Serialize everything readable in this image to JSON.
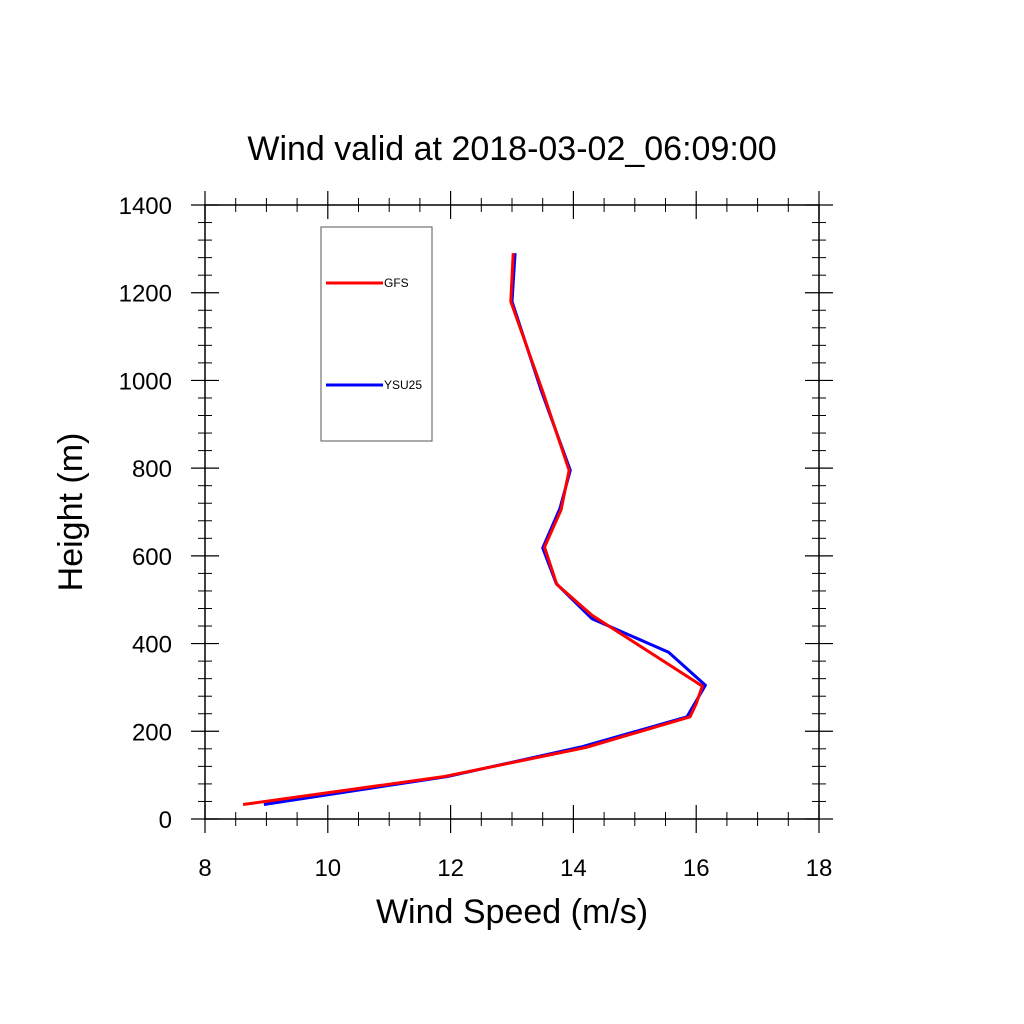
{
  "chart_data": {
    "type": "line",
    "title": "Wind valid at 2018-03-02_06:09:00",
    "xlabel": "Wind Speed (m/s)",
    "ylabel": "Height (m)",
    "xlim": [
      8,
      18
    ],
    "ylim": [
      0,
      1400
    ],
    "xticks": [
      8,
      10,
      12,
      14,
      16,
      18
    ],
    "yticks": [
      0,
      200,
      400,
      600,
      800,
      1000,
      1200,
      1400
    ],
    "xtick_labels": [
      "8",
      "10",
      "12",
      "14",
      "16",
      "18"
    ],
    "ytick_labels": [
      "0",
      "200",
      "400",
      "600",
      "800",
      "1000",
      "1200",
      "1400"
    ],
    "grid": false,
    "legend_position": "top-left",
    "series": [
      {
        "name": "GFS",
        "color": "#ff0000",
        "points": [
          {
            "x": 8.62,
            "y": 33
          },
          {
            "x": 11.9,
            "y": 97
          },
          {
            "x": 14.2,
            "y": 163
          },
          {
            "x": 15.9,
            "y": 233
          },
          {
            "x": 16.0,
            "y": 263
          },
          {
            "x": 16.1,
            "y": 303
          },
          {
            "x": 15.3,
            "y": 375
          },
          {
            "x": 14.3,
            "y": 465
          },
          {
            "x": 13.73,
            "y": 535
          },
          {
            "x": 13.53,
            "y": 620
          },
          {
            "x": 13.8,
            "y": 705
          },
          {
            "x": 13.93,
            "y": 795
          },
          {
            "x": 13.5,
            "y": 975
          },
          {
            "x": 12.98,
            "y": 1180
          },
          {
            "x": 13.02,
            "y": 1290
          }
        ]
      },
      {
        "name": "YSU25",
        "color": "#0000ff",
        "points": [
          {
            "x": 8.96,
            "y": 33
          },
          {
            "x": 11.95,
            "y": 97
          },
          {
            "x": 14.15,
            "y": 165
          },
          {
            "x": 15.85,
            "y": 233
          },
          {
            "x": 16.15,
            "y": 305
          },
          {
            "x": 15.55,
            "y": 380
          },
          {
            "x": 14.3,
            "y": 457
          },
          {
            "x": 13.72,
            "y": 537
          },
          {
            "x": 13.5,
            "y": 618
          },
          {
            "x": 13.78,
            "y": 708
          },
          {
            "x": 13.95,
            "y": 795
          },
          {
            "x": 13.48,
            "y": 975
          },
          {
            "x": 13.0,
            "y": 1180
          },
          {
            "x": 13.05,
            "y": 1290
          }
        ]
      }
    ]
  }
}
